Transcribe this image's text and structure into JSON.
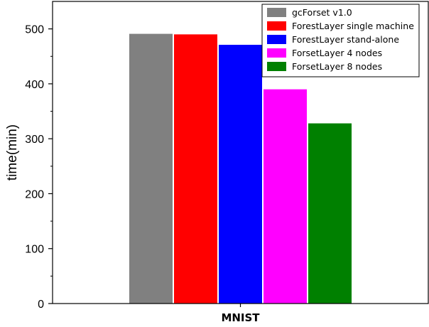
{
  "chart_data": {
    "type": "bar",
    "categories": [
      "MNIST"
    ],
    "series": [
      {
        "name": "gcForset v1.0",
        "values": [
          491
        ],
        "color": "#808080"
      },
      {
        "name": "ForestLayer single machine",
        "values": [
          490
        ],
        "color": "#ff0000"
      },
      {
        "name": "ForestLayer stand-alone",
        "values": [
          471
        ],
        "color": "#0000ff"
      },
      {
        "name": "ForsetLayer 4 nodes",
        "values": [
          390
        ],
        "color": "#ff00ff"
      },
      {
        "name": "ForsetLayer 8 nodes",
        "values": [
          328
        ],
        "color": "#008000"
      }
    ],
    "ylabel": "time(min)",
    "xlabel": "",
    "ylim": [
      0,
      550
    ],
    "yticks": [
      0,
      100,
      200,
      300,
      400,
      500
    ],
    "grid": false,
    "legend_position": "top-right"
  }
}
